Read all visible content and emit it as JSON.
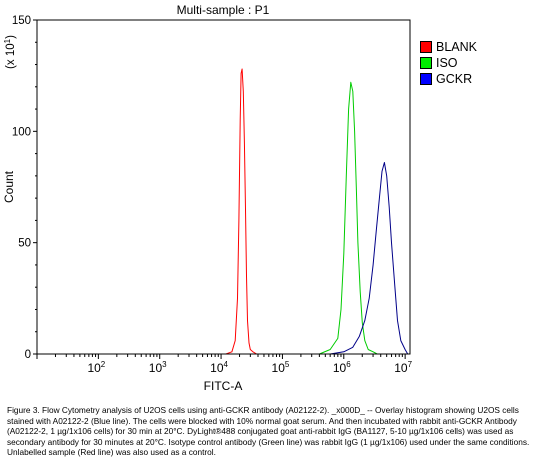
{
  "chart_data": {
    "type": "histogram",
    "title": "Multi-sample : P1",
    "xlabel": "FITC-A",
    "ylabel": "Count",
    "y_multiplier_label": "(x 10",
    "y_multiplier_exp": "1",
    "y_multiplier_close": ")",
    "x_scale": "log",
    "xlim": [
      10,
      12000000
    ],
    "ylim": [
      0,
      150
    ],
    "x_ticks": [
      {
        "base": "10",
        "exp": "2",
        "value": 100
      },
      {
        "base": "10",
        "exp": "3",
        "value": 1000
      },
      {
        "base": "10",
        "exp": "4",
        "value": 10000
      },
      {
        "base": "10",
        "exp": "5",
        "value": 100000
      },
      {
        "base": "10",
        "exp": "6",
        "value": 1000000
      },
      {
        "base": "10",
        "exp": "7",
        "value": 10000000
      }
    ],
    "y_ticks": [
      {
        "label": "0",
        "value": 0
      },
      {
        "label": "50",
        "value": 50
      },
      {
        "label": "100",
        "value": 100
      },
      {
        "label": "150",
        "value": 150
      }
    ],
    "legend_position": "top-right",
    "series": [
      {
        "name": "BLANK",
        "color": "#ff0000",
        "legend_color": "#ff0000",
        "x": [
          12000,
          15000,
          17000,
          18500,
          19500,
          20500,
          21200,
          22000,
          23000,
          24000,
          25000,
          26000,
          27000,
          28500,
          30000,
          33000,
          38000
        ],
        "y": [
          0,
          1,
          6,
          25,
          60,
          105,
          126,
          128,
          118,
          95,
          65,
          35,
          15,
          5,
          2,
          1,
          0
        ]
      },
      {
        "name": "ISO",
        "color": "#00cc00",
        "legend_color": "#00ee00",
        "x": [
          400000,
          600000,
          800000,
          900000,
          1000000,
          1100000,
          1200000,
          1300000,
          1400000,
          1500000,
          1600000,
          1700000,
          1850000,
          2000000,
          2200000,
          2500000,
          3000000,
          3500000
        ],
        "y": [
          0,
          2,
          7,
          20,
          45,
          80,
          110,
          122,
          118,
          100,
          75,
          50,
          28,
          14,
          6,
          2,
          1,
          0
        ]
      },
      {
        "name": "GCKR",
        "color": "#000088",
        "legend_color": "#0000ff",
        "x": [
          600000,
          1000000,
          1400000,
          1800000,
          2200000,
          2600000,
          3000000,
          3400000,
          3800000,
          4200000,
          4600000,
          5000000,
          5500000,
          6000000,
          6800000,
          7500000,
          8500000,
          10000000,
          11000000
        ],
        "y": [
          0,
          1,
          3,
          8,
          15,
          25,
          40,
          56,
          70,
          82,
          86,
          80,
          66,
          50,
          30,
          15,
          6,
          2,
          0
        ]
      }
    ]
  },
  "caption": "Figure 3. Flow Cytometry analysis of U2OS cells using anti-GCKR antibody (A02122-2). _x000D_ -- Overlay histogram showing U2OS cells stained with A02122-2 (Blue line). The cells were blocked with 10% normal goat serum. And then incubated with rabbit anti-GCKR Antibody (A02122-2, 1 µg/1x106 cells) for 30 min at 20°C. DyLight®488 conjugated goat anti-rabbit IgG (BA1127, 5-10 µg/1x106 cells) was used as secondary antibody for 30 minutes at 20°C. Isotype control antibody (Green line) was rabbit IgG (1 µg/1x106) used under the same conditions. Unlabelled sample (Red line) was also used as a control."
}
